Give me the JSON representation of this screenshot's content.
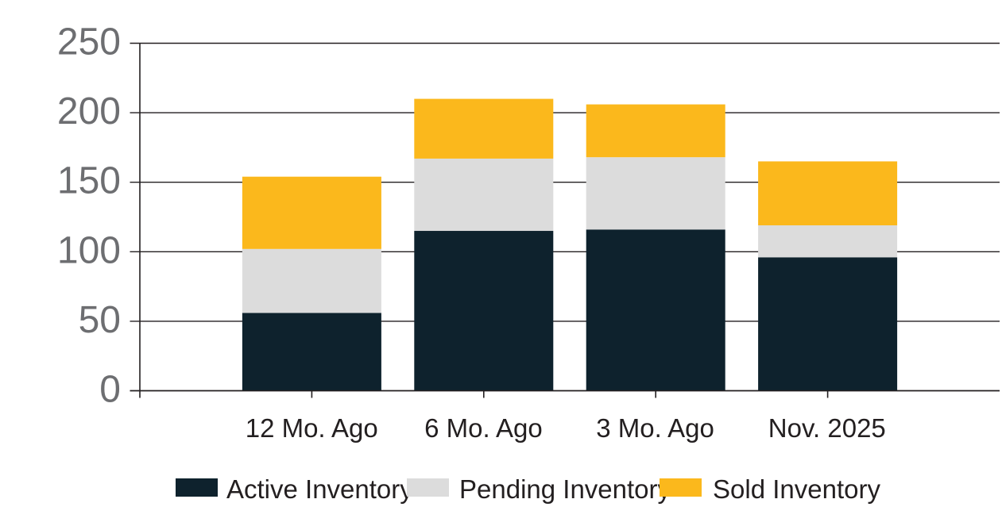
{
  "chart_data": {
    "type": "bar",
    "stacked": true,
    "categories": [
      "12 Mo. Ago",
      "6 Mo. Ago",
      "3 Mo. Ago",
      "Nov. 2025"
    ],
    "series": [
      {
        "name": "Active Inventory",
        "color": "#0E222D",
        "values": [
          56,
          115,
          116,
          96
        ]
      },
      {
        "name": "Pending Inventory",
        "color": "#DCDCDC",
        "values": [
          46,
          52,
          52,
          23
        ]
      },
      {
        "name": "Sold Inventory",
        "color": "#FBB81C",
        "values": [
          52,
          43,
          38,
          46
        ]
      }
    ],
    "stack_totals": [
      154,
      210,
      206,
      165
    ],
    "ylim": [
      0,
      250
    ],
    "yticks": [
      0,
      50,
      100,
      150,
      200,
      250
    ],
    "ytick_labels": [
      "0",
      "50",
      "100",
      "150",
      "200",
      "250"
    ],
    "grid": "horizontal",
    "legend_position": "bottom-center"
  },
  "colors": {
    "background": "#FFFFFF",
    "grid": "#231F20",
    "axis": "#231F20",
    "ytick_text": "#6D6E71",
    "xtick_text": "#231F20",
    "legend_text": "#231F20"
  }
}
